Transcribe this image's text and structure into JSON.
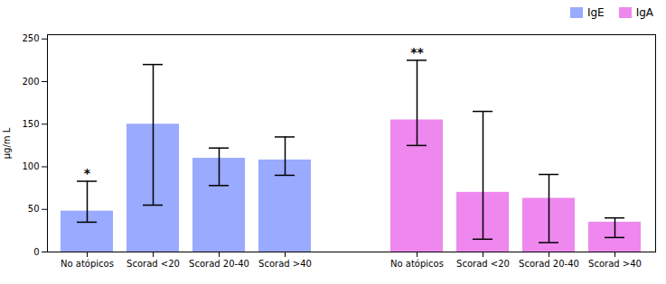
{
  "chart_data": {
    "type": "bar",
    "categories": [
      "No atópicos",
      "Scorad <20",
      "Scorad 20-40",
      "Scorad >40"
    ],
    "series": [
      {
        "name": "IgE",
        "color": "#99AAFF",
        "values": [
          48,
          150,
          110,
          108
        ],
        "error_upper": [
          35,
          70,
          12,
          27
        ],
        "error_lower": [
          13,
          95,
          32,
          18
        ]
      },
      {
        "name": "IgA",
        "color": "#EE88EE",
        "values": [
          155,
          70,
          63,
          35
        ],
        "error_upper": [
          70,
          95,
          28,
          5
        ],
        "error_lower": [
          30,
          55,
          52,
          18
        ]
      }
    ],
    "ylabel": "µg/m L",
    "ylim": [
      0,
      255
    ],
    "yticks": [
      0,
      50,
      100,
      150,
      200,
      250
    ],
    "legend": "upper right",
    "annotations": [
      {
        "text": "*",
        "series": "IgE",
        "category": "No atópicos"
      },
      {
        "text": "**",
        "series": "IgA",
        "category": "No atópicos"
      }
    ]
  }
}
